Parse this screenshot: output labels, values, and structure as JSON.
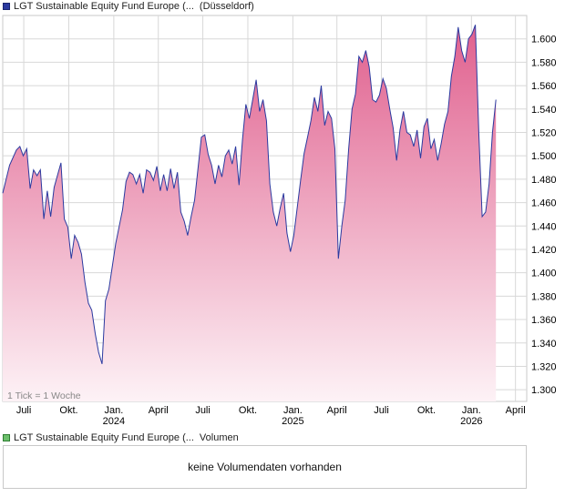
{
  "legend": {
    "price_series": "LGT Sustainable Equity Fund Europe (...",
    "price_exchange": "(Düsseldorf)",
    "volume_series": "LGT Sustainable Equity Fund Europe (...",
    "volume_label": "Volumen"
  },
  "volume_panel": {
    "message": "keine Volumendaten vorhanden"
  },
  "tick_note": "1 Tick = 1 Woche",
  "colors": {
    "line": "#2b3aa0",
    "fill_top": "#e0608e",
    "fill_bottom": "#fdf2f6",
    "grid": "#d8d8d8",
    "volume_swatch": "#6bbf6b"
  },
  "chart_data": {
    "type": "area",
    "x_axis": {
      "range": [
        "2023-05-19",
        "2026-04-24"
      ],
      "ticks": [
        {
          "date": "2023-07-01",
          "label": "Juli"
        },
        {
          "date": "2023-10-01",
          "label": "Okt."
        },
        {
          "date": "2024-01-01",
          "label": "Jan."
        },
        {
          "date": "2024-04-01",
          "label": "April"
        },
        {
          "date": "2024-07-01",
          "label": "Juli"
        },
        {
          "date": "2024-10-01",
          "label": "Okt."
        },
        {
          "date": "2025-01-01",
          "label": "Jan."
        },
        {
          "date": "2025-04-01",
          "label": "April"
        },
        {
          "date": "2025-07-01",
          "label": "Juli"
        },
        {
          "date": "2025-10-01",
          "label": "Okt."
        },
        {
          "date": "2026-01-01",
          "label": "Jan."
        },
        {
          "date": "2026-04-01",
          "label": "April"
        }
      ],
      "years": [
        {
          "date": "2024-01-01",
          "label": "2024"
        },
        {
          "date": "2025-01-01",
          "label": "2025"
        },
        {
          "date": "2026-01-01",
          "label": "2026"
        }
      ]
    },
    "y_axis": {
      "range": [
        1.29,
        1.62
      ],
      "ticks": [
        "1.300",
        "1.320",
        "1.340",
        "1.360",
        "1.380",
        "1.400",
        "1.420",
        "1.440",
        "1.460",
        "1.480",
        "1.500",
        "1.520",
        "1.540",
        "1.560",
        "1.580",
        "1.600"
      ]
    },
    "grid": true,
    "series": [
      {
        "points": [
          [
            "2023-05-19",
            1.468
          ],
          [
            "2023-06-02",
            1.492
          ],
          [
            "2023-06-16",
            1.505
          ],
          [
            "2023-06-23",
            1.508
          ],
          [
            "2023-06-30",
            1.5
          ],
          [
            "2023-07-07",
            1.506
          ],
          [
            "2023-07-14",
            1.472
          ],
          [
            "2023-07-21",
            1.488
          ],
          [
            "2023-07-28",
            1.483
          ],
          [
            "2023-08-04",
            1.488
          ],
          [
            "2023-08-11",
            1.446
          ],
          [
            "2023-08-18",
            1.47
          ],
          [
            "2023-08-25",
            1.448
          ],
          [
            "2023-09-01",
            1.473
          ],
          [
            "2023-09-15",
            1.494
          ],
          [
            "2023-09-22",
            1.446
          ],
          [
            "2023-09-29",
            1.439
          ],
          [
            "2023-10-06",
            1.412
          ],
          [
            "2023-10-13",
            1.432
          ],
          [
            "2023-10-20",
            1.426
          ],
          [
            "2023-10-27",
            1.416
          ],
          [
            "2023-11-03",
            1.392
          ],
          [
            "2023-11-10",
            1.374
          ],
          [
            "2023-11-17",
            1.368
          ],
          [
            "2023-11-24",
            1.348
          ],
          [
            "2023-12-01",
            1.332
          ],
          [
            "2023-12-08",
            1.322
          ],
          [
            "2023-12-15",
            1.376
          ],
          [
            "2023-12-22",
            1.386
          ],
          [
            "2024-01-05",
            1.425
          ],
          [
            "2024-01-19",
            1.454
          ],
          [
            "2024-01-26",
            1.478
          ],
          [
            "2024-02-02",
            1.486
          ],
          [
            "2024-02-09",
            1.484
          ],
          [
            "2024-02-16",
            1.476
          ],
          [
            "2024-02-23",
            1.484
          ],
          [
            "2024-03-01",
            1.468
          ],
          [
            "2024-03-08",
            1.488
          ],
          [
            "2024-03-15",
            1.486
          ],
          [
            "2024-03-22",
            1.479
          ],
          [
            "2024-03-29",
            1.491
          ],
          [
            "2024-04-05",
            1.47
          ],
          [
            "2024-04-12",
            1.484
          ],
          [
            "2024-04-19",
            1.47
          ],
          [
            "2024-04-26",
            1.489
          ],
          [
            "2024-05-03",
            1.472
          ],
          [
            "2024-05-10",
            1.486
          ],
          [
            "2024-05-17",
            1.452
          ],
          [
            "2024-05-24",
            1.444
          ],
          [
            "2024-05-31",
            1.432
          ],
          [
            "2024-06-07",
            1.448
          ],
          [
            "2024-06-14",
            1.462
          ],
          [
            "2024-06-28",
            1.516
          ],
          [
            "2024-07-05",
            1.518
          ],
          [
            "2024-07-12",
            1.501
          ],
          [
            "2024-07-19",
            1.492
          ],
          [
            "2024-07-26",
            1.476
          ],
          [
            "2024-08-02",
            1.492
          ],
          [
            "2024-08-09",
            1.482
          ],
          [
            "2024-08-16",
            1.5
          ],
          [
            "2024-08-23",
            1.505
          ],
          [
            "2024-08-30",
            1.493
          ],
          [
            "2024-09-06",
            1.508
          ],
          [
            "2024-09-13",
            1.475
          ],
          [
            "2024-09-20",
            1.514
          ],
          [
            "2024-09-27",
            1.544
          ],
          [
            "2024-10-04",
            1.532
          ],
          [
            "2024-10-11",
            1.548
          ],
          [
            "2024-10-18",
            1.565
          ],
          [
            "2024-10-25",
            1.538
          ],
          [
            "2024-11-01",
            1.548
          ],
          [
            "2024-11-08",
            1.53
          ],
          [
            "2024-11-15",
            1.476
          ],
          [
            "2024-11-22",
            1.452
          ],
          [
            "2024-11-29",
            1.44
          ],
          [
            "2024-12-06",
            1.455
          ],
          [
            "2024-12-13",
            1.468
          ],
          [
            "2024-12-20",
            1.434
          ],
          [
            "2024-12-27",
            1.418
          ],
          [
            "2025-01-03",
            1.432
          ],
          [
            "2025-01-17",
            1.48
          ],
          [
            "2025-01-24",
            1.502
          ],
          [
            "2025-01-31",
            1.516
          ],
          [
            "2025-02-07",
            1.53
          ],
          [
            "2025-02-14",
            1.55
          ],
          [
            "2025-02-21",
            1.538
          ],
          [
            "2025-02-28",
            1.56
          ],
          [
            "2025-03-07",
            1.526
          ],
          [
            "2025-03-14",
            1.538
          ],
          [
            "2025-03-21",
            1.532
          ],
          [
            "2025-03-28",
            1.506
          ],
          [
            "2025-04-04",
            1.412
          ],
          [
            "2025-04-11",
            1.44
          ],
          [
            "2025-04-18",
            1.462
          ],
          [
            "2025-04-25",
            1.506
          ],
          [
            "2025-05-02",
            1.54
          ],
          [
            "2025-05-09",
            1.553
          ],
          [
            "2025-05-16",
            1.585
          ],
          [
            "2025-05-23",
            1.58
          ],
          [
            "2025-05-30",
            1.59
          ],
          [
            "2025-06-06",
            1.576
          ],
          [
            "2025-06-13",
            1.548
          ],
          [
            "2025-06-20",
            1.546
          ],
          [
            "2025-06-27",
            1.552
          ],
          [
            "2025-07-04",
            1.566
          ],
          [
            "2025-07-11",
            1.558
          ],
          [
            "2025-07-18",
            1.54
          ],
          [
            "2025-07-25",
            1.524
          ],
          [
            "2025-08-01",
            1.496
          ],
          [
            "2025-08-08",
            1.522
          ],
          [
            "2025-08-15",
            1.538
          ],
          [
            "2025-08-22",
            1.52
          ],
          [
            "2025-08-29",
            1.518
          ],
          [
            "2025-09-05",
            1.508
          ],
          [
            "2025-09-12",
            1.522
          ],
          [
            "2025-09-19",
            1.498
          ],
          [
            "2025-09-26",
            1.525
          ],
          [
            "2025-10-03",
            1.532
          ],
          [
            "2025-10-10",
            1.506
          ],
          [
            "2025-10-17",
            1.514
          ],
          [
            "2025-10-24",
            1.496
          ],
          [
            "2025-10-31",
            1.51
          ],
          [
            "2025-11-07",
            1.527
          ],
          [
            "2025-11-14",
            1.538
          ],
          [
            "2025-11-21",
            1.568
          ],
          [
            "2025-11-28",
            1.585
          ],
          [
            "2025-12-05",
            1.61
          ],
          [
            "2025-12-12",
            1.59
          ],
          [
            "2025-12-19",
            1.58
          ],
          [
            "2025-12-26",
            1.6
          ],
          [
            "2026-01-02",
            1.604
          ],
          [
            "2026-01-09",
            1.612
          ],
          [
            "2026-01-16",
            1.52
          ],
          [
            "2026-01-23",
            1.448
          ],
          [
            "2026-01-30",
            1.452
          ],
          [
            "2026-02-06",
            1.476
          ],
          [
            "2026-02-13",
            1.52
          ],
          [
            "2026-02-20",
            1.548
          ]
        ]
      }
    ]
  }
}
